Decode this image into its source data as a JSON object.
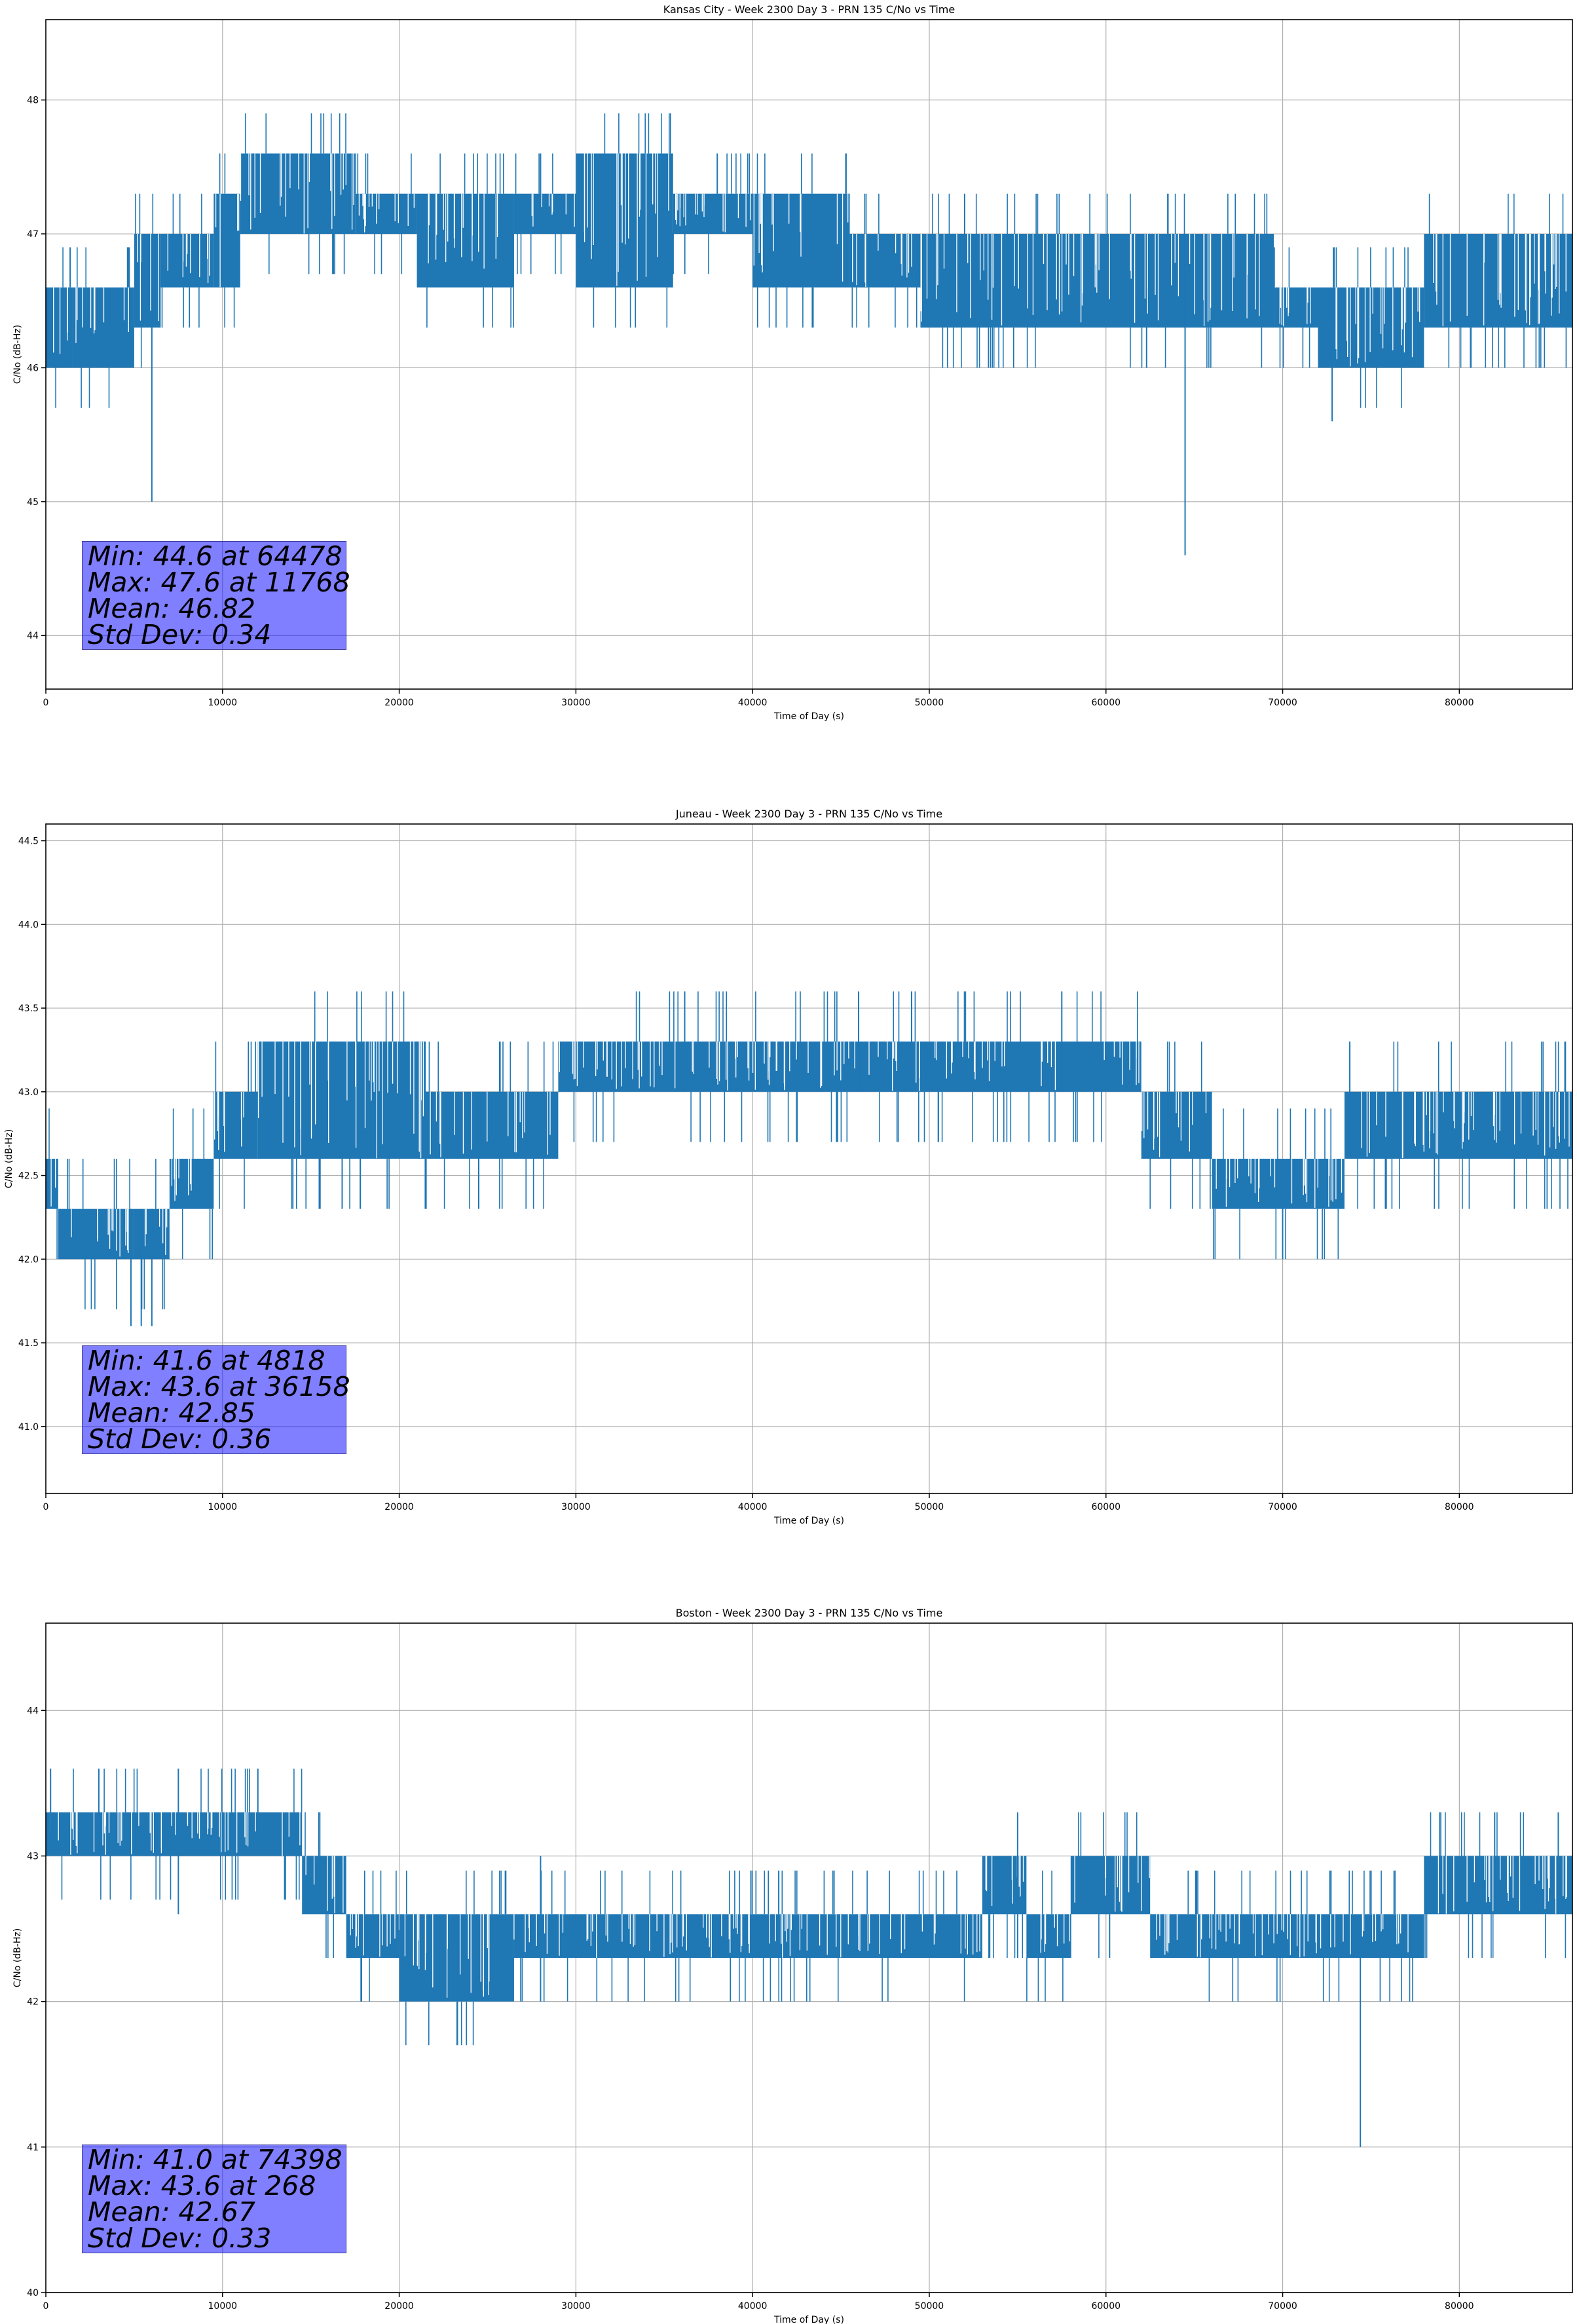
{
  "chart_data": [
    {
      "type": "line",
      "title": "Kansas City - Week 2300 Day 3 - PRN 135 C/No vs Time",
      "xlabel": "Time of Day (s)",
      "ylabel": "C/No (dB-Hz)",
      "xlim": [
        0,
        86400
      ],
      "ylim": [
        43.6,
        48.6
      ],
      "xticks": [
        0,
        10000,
        20000,
        30000,
        40000,
        50000,
        60000,
        70000,
        80000
      ],
      "yticks": [
        44,
        45,
        46,
        47,
        48
      ],
      "ytick_labels": [
        "44",
        "45",
        "46",
        "47",
        "48"
      ],
      "grid": true,
      "series_color": "#1f77b4",
      "series": [
        {
          "name": "C/No",
          "segments": [
            {
              "x0": 0,
              "x1": 1500,
              "lo": 46.0,
              "hi": 46.6
            },
            {
              "x0": 1500,
              "x1": 5000,
              "lo": 46.0,
              "hi": 46.6
            },
            {
              "x0": 5000,
              "x1": 6500,
              "lo": 46.3,
              "hi": 47.0
            },
            {
              "x0": 6500,
              "x1": 9500,
              "lo": 46.6,
              "hi": 47.0
            },
            {
              "x0": 9500,
              "x1": 11000,
              "lo": 46.6,
              "hi": 47.3
            },
            {
              "x0": 11000,
              "x1": 17500,
              "lo": 47.0,
              "hi": 47.6
            },
            {
              "x0": 17500,
              "x1": 21000,
              "lo": 47.0,
              "hi": 47.3
            },
            {
              "x0": 21000,
              "x1": 26500,
              "lo": 46.6,
              "hi": 47.3
            },
            {
              "x0": 26500,
              "x1": 30000,
              "lo": 47.0,
              "hi": 47.3
            },
            {
              "x0": 30000,
              "x1": 35500,
              "lo": 46.6,
              "hi": 47.6
            },
            {
              "x0": 35500,
              "x1": 40000,
              "lo": 47.0,
              "hi": 47.3
            },
            {
              "x0": 40000,
              "x1": 45500,
              "lo": 46.6,
              "hi": 47.3
            },
            {
              "x0": 45500,
              "x1": 49500,
              "lo": 46.6,
              "hi": 47.0
            },
            {
              "x0": 49500,
              "x1": 69500,
              "lo": 46.3,
              "hi": 47.0
            },
            {
              "x0": 69500,
              "x1": 72000,
              "lo": 46.3,
              "hi": 46.6
            },
            {
              "x0": 72000,
              "x1": 78000,
              "lo": 46.0,
              "hi": 46.6
            },
            {
              "x0": 78000,
              "x1": 86400,
              "lo": 46.3,
              "hi": 47.0
            }
          ],
          "spikes": [
            {
              "x": 6000,
              "lo": 45.0,
              "hi": 46.6
            },
            {
              "x": 64478,
              "lo": 44.6,
              "hi": 47.0
            },
            {
              "x": 11768,
              "lo": 47.0,
              "hi": 47.6
            },
            {
              "x": 52000,
              "lo": 46.6,
              "hi": 47.3
            },
            {
              "x": 62300,
              "lo": 46.0,
              "hi": 46.6
            },
            {
              "x": 72800,
              "lo": 45.6,
              "hi": 46.3
            },
            {
              "x": 28000,
              "lo": 47.0,
              "hi": 47.6
            },
            {
              "x": 38000,
              "lo": 47.0,
              "hi": 47.6
            }
          ]
        }
      ],
      "stats": [
        "Min: 44.6 at 64478",
        "Max: 47.6 at 11768",
        "Mean: 46.82",
        "Std Dev: 0.34"
      ]
    },
    {
      "type": "line",
      "title": "Juneau - Week 2300 Day 3 - PRN 135 C/No vs Time",
      "xlabel": "Time of Day (s)",
      "ylabel": "C/No (dB-Hz)",
      "xlim": [
        0,
        86400
      ],
      "ylim": [
        40.6,
        44.6
      ],
      "xticks": [
        0,
        10000,
        20000,
        30000,
        40000,
        50000,
        60000,
        70000,
        80000
      ],
      "yticks": [
        41.0,
        41.5,
        42.0,
        42.5,
        43.0,
        43.5,
        44.0,
        44.5
      ],
      "ytick_labels": [
        "41.0",
        "41.5",
        "42.0",
        "42.5",
        "43.0",
        "43.5",
        "44.0",
        "44.5"
      ],
      "grid": true,
      "series_color": "#1f77b4",
      "series": [
        {
          "name": "C/No",
          "segments": [
            {
              "x0": 0,
              "x1": 700,
              "lo": 42.3,
              "hi": 42.6
            },
            {
              "x0": 700,
              "x1": 5000,
              "lo": 42.0,
              "hi": 42.3
            },
            {
              "x0": 5000,
              "x1": 7000,
              "lo": 42.0,
              "hi": 42.3
            },
            {
              "x0": 7000,
              "x1": 9500,
              "lo": 42.3,
              "hi": 42.6
            },
            {
              "x0": 9500,
              "x1": 12000,
              "lo": 42.6,
              "hi": 43.0
            },
            {
              "x0": 12000,
              "x1": 21500,
              "lo": 42.6,
              "hi": 43.3
            },
            {
              "x0": 21500,
              "x1": 29000,
              "lo": 42.6,
              "hi": 43.0
            },
            {
              "x0": 29000,
              "x1": 62000,
              "lo": 43.0,
              "hi": 43.3
            },
            {
              "x0": 62000,
              "x1": 66000,
              "lo": 42.6,
              "hi": 43.0
            },
            {
              "x0": 66000,
              "x1": 73500,
              "lo": 42.3,
              "hi": 42.6
            },
            {
              "x0": 73500,
              "x1": 86400,
              "lo": 42.6,
              "hi": 43.0
            }
          ],
          "spikes": [
            {
              "x": 4818,
              "lo": 41.6,
              "hi": 42.3
            },
            {
              "x": 5400,
              "lo": 41.6,
              "hi": 42.3
            },
            {
              "x": 6000,
              "lo": 41.6,
              "hi": 42.3
            },
            {
              "x": 70000,
              "lo": 42.0,
              "hi": 42.6
            },
            {
              "x": 36158,
              "lo": 43.0,
              "hi": 43.6
            },
            {
              "x": 46000,
              "lo": 43.0,
              "hi": 43.6
            },
            {
              "x": 49000,
              "lo": 43.0,
              "hi": 43.6
            },
            {
              "x": 57500,
              "lo": 43.0,
              "hi": 43.6
            },
            {
              "x": 24500,
              "lo": 42.3,
              "hi": 43.0
            },
            {
              "x": 73800,
              "lo": 42.6,
              "hi": 43.3
            }
          ]
        }
      ],
      "stats": [
        "Min: 41.6 at 4818",
        "Max: 43.6 at 36158",
        "Mean: 42.85",
        "Std Dev: 0.36"
      ]
    },
    {
      "type": "line",
      "title": "Boston - Week 2300 Day 3 - PRN 135 C/No vs Time",
      "xlabel": "Time of Day (s)",
      "ylabel": "C/No (dB-Hz)",
      "xlim": [
        0,
        86400
      ],
      "ylim": [
        40.0,
        44.6
      ],
      "xticks": [
        0,
        10000,
        20000,
        30000,
        40000,
        50000,
        60000,
        70000,
        80000
      ],
      "yticks": [
        40,
        41,
        42,
        43,
        44
      ],
      "ytick_labels": [
        "40",
        "41",
        "42",
        "43",
        "44"
      ],
      "grid": true,
      "series_color": "#1f77b4",
      "series": [
        {
          "name": "C/No",
          "segments": [
            {
              "x0": 0,
              "x1": 14500,
              "lo": 43.0,
              "hi": 43.3
            },
            {
              "x0": 14500,
              "x1": 17000,
              "lo": 42.6,
              "hi": 43.0
            },
            {
              "x0": 17000,
              "x1": 20000,
              "lo": 42.3,
              "hi": 42.6
            },
            {
              "x0": 20000,
              "x1": 26500,
              "lo": 42.0,
              "hi": 42.6
            },
            {
              "x0": 26500,
              "x1": 53000,
              "lo": 42.3,
              "hi": 42.6
            },
            {
              "x0": 53000,
              "x1": 55500,
              "lo": 42.6,
              "hi": 43.0
            },
            {
              "x0": 55500,
              "x1": 58000,
              "lo": 42.3,
              "hi": 42.6
            },
            {
              "x0": 58000,
              "x1": 62500,
              "lo": 42.6,
              "hi": 43.0
            },
            {
              "x0": 62500,
              "x1": 78000,
              "lo": 42.3,
              "hi": 42.6
            },
            {
              "x0": 78000,
              "x1": 86400,
              "lo": 42.6,
              "hi": 43.0
            }
          ],
          "spikes": [
            {
              "x": 268,
              "lo": 43.0,
              "hi": 43.6
            },
            {
              "x": 3000,
              "lo": 43.0,
              "hi": 43.6
            },
            {
              "x": 7500,
              "lo": 42.6,
              "hi": 43.6
            },
            {
              "x": 12000,
              "lo": 43.0,
              "hi": 43.6
            },
            {
              "x": 74398,
              "lo": 41.0,
              "hi": 42.3
            },
            {
              "x": 28000,
              "lo": 42.0,
              "hi": 43.0
            },
            {
              "x": 55000,
              "lo": 42.3,
              "hi": 43.3
            },
            {
              "x": 82000,
              "lo": 42.6,
              "hi": 43.3
            },
            {
              "x": 85600,
              "lo": 42.6,
              "hi": 43.3
            }
          ]
        }
      ],
      "stats": [
        "Min: 41.0 at 74398",
        "Max: 43.6 at 268",
        "Mean: 42.67",
        "Std Dev: 0.33"
      ]
    }
  ]
}
